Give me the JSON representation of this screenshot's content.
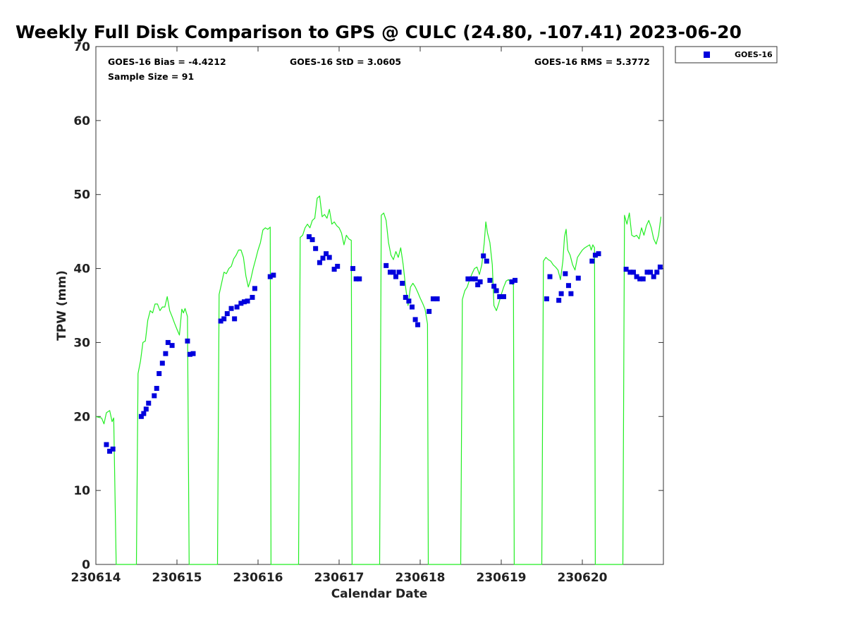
{
  "chart_data": {
    "type": "scatter",
    "title": "Weekly Full Disk Comparison to GPS @ CULC (24.80, -107.41) 2023-06-20",
    "xlabel": "Calendar Date",
    "ylabel": "TPW (mm)",
    "xlim": [
      0,
      7
    ],
    "ylim": [
      0,
      70
    ],
    "xticks": [
      {
        "value": 0,
        "label": "230614"
      },
      {
        "value": 1,
        "label": "230615"
      },
      {
        "value": 2,
        "label": "230616"
      },
      {
        "value": 3,
        "label": "230617"
      },
      {
        "value": 4,
        "label": "230618"
      },
      {
        "value": 5,
        "label": "230619"
      },
      {
        "value": 6,
        "label": "230620"
      }
    ],
    "yticks": [
      0,
      10,
      20,
      30,
      40,
      50,
      60,
      70
    ],
    "stats": {
      "bias": "GOES-16 Bias = -4.4212",
      "std": "GOES-16 StD = 3.0605",
      "rms": "GOES-16 RMS = 5.3772",
      "sample": "Sample Size = 91"
    },
    "legend": {
      "label": "GOES-16",
      "position": "top-right"
    },
    "colors": {
      "goes": "#0000dd",
      "gps": "#22ee22"
    },
    "gps_series": {
      "name": "GPS",
      "points": [
        [
          0.0,
          20.0
        ],
        [
          0.03,
          19.9
        ],
        [
          0.07,
          19.8
        ],
        [
          0.1,
          19.0
        ],
        [
          0.13,
          20.5
        ],
        [
          0.17,
          20.8
        ],
        [
          0.2,
          19.3
        ],
        [
          0.22,
          19.8
        ],
        [
          0.25,
          0
        ],
        [
          0.5,
          0
        ],
        [
          0.52,
          25.8
        ],
        [
          0.55,
          27.5
        ],
        [
          0.58,
          30.0
        ],
        [
          0.61,
          30.2
        ],
        [
          0.64,
          33.0
        ],
        [
          0.67,
          34.3
        ],
        [
          0.7,
          34.0
        ],
        [
          0.73,
          35.2
        ],
        [
          0.76,
          35.2
        ],
        [
          0.79,
          34.3
        ],
        [
          0.82,
          34.8
        ],
        [
          0.85,
          34.8
        ],
        [
          0.88,
          36.2
        ],
        [
          0.91,
          34.3
        ],
        [
          0.94,
          33.5
        ],
        [
          0.97,
          32.6
        ],
        [
          1.0,
          31.8
        ],
        [
          1.03,
          31.0
        ],
        [
          1.06,
          34.5
        ],
        [
          1.08,
          34.0
        ],
        [
          1.1,
          34.6
        ],
        [
          1.13,
          33.5
        ],
        [
          1.15,
          0
        ],
        [
          1.5,
          0
        ],
        [
          1.52,
          36.5
        ],
        [
          1.55,
          38.0
        ],
        [
          1.58,
          39.5
        ],
        [
          1.61,
          39.3
        ],
        [
          1.64,
          40.0
        ],
        [
          1.67,
          40.3
        ],
        [
          1.7,
          41.3
        ],
        [
          1.73,
          41.8
        ],
        [
          1.76,
          42.5
        ],
        [
          1.79,
          42.5
        ],
        [
          1.82,
          41.5
        ],
        [
          1.85,
          39.0
        ],
        [
          1.88,
          37.5
        ],
        [
          1.91,
          38.5
        ],
        [
          1.94,
          40.0
        ],
        [
          1.97,
          41.2
        ],
        [
          2.0,
          42.5
        ],
        [
          2.03,
          43.5
        ],
        [
          2.06,
          45.2
        ],
        [
          2.09,
          45.5
        ],
        [
          2.12,
          45.3
        ],
        [
          2.15,
          45.6
        ],
        [
          2.16,
          0
        ],
        [
          2.5,
          0
        ],
        [
          2.52,
          44.2
        ],
        [
          2.55,
          44.5
        ],
        [
          2.58,
          45.5
        ],
        [
          2.61,
          46.0
        ],
        [
          2.64,
          45.5
        ],
        [
          2.67,
          46.5
        ],
        [
          2.7,
          46.8
        ],
        [
          2.73,
          49.5
        ],
        [
          2.76,
          49.8
        ],
        [
          2.79,
          47.0
        ],
        [
          2.82,
          47.3
        ],
        [
          2.85,
          46.8
        ],
        [
          2.88,
          48.0
        ],
        [
          2.91,
          46.0
        ],
        [
          2.94,
          46.3
        ],
        [
          2.97,
          45.8
        ],
        [
          3.0,
          45.5
        ],
        [
          3.03,
          44.8
        ],
        [
          3.06,
          43.2
        ],
        [
          3.09,
          44.5
        ],
        [
          3.12,
          44.0
        ],
        [
          3.15,
          43.8
        ],
        [
          3.16,
          0
        ],
        [
          3.5,
          0
        ],
        [
          3.52,
          47.2
        ],
        [
          3.55,
          47.5
        ],
        [
          3.58,
          46.5
        ],
        [
          3.61,
          43.5
        ],
        [
          3.64,
          41.8
        ],
        [
          3.67,
          41.2
        ],
        [
          3.7,
          42.3
        ],
        [
          3.73,
          41.5
        ],
        [
          3.76,
          42.8
        ],
        [
          3.79,
          40.5
        ],
        [
          3.82,
          37.5
        ],
        [
          3.85,
          35.0
        ],
        [
          3.88,
          37.5
        ],
        [
          3.91,
          38.0
        ],
        [
          3.94,
          37.5
        ],
        [
          3.97,
          36.8
        ],
        [
          4.0,
          36.0
        ],
        [
          4.03,
          35.3
        ],
        [
          4.06,
          34.5
        ],
        [
          4.09,
          32.5
        ],
        [
          4.1,
          0
        ],
        [
          4.5,
          0
        ],
        [
          4.52,
          35.8
        ],
        [
          4.55,
          37.0
        ],
        [
          4.58,
          37.5
        ],
        [
          4.61,
          38.5
        ],
        [
          4.64,
          39.3
        ],
        [
          4.67,
          40.0
        ],
        [
          4.7,
          40.2
        ],
        [
          4.73,
          39.2
        ],
        [
          4.76,
          40.5
        ],
        [
          4.79,
          43.5
        ],
        [
          4.81,
          46.3
        ],
        [
          4.83,
          44.8
        ],
        [
          4.86,
          43.5
        ],
        [
          4.89,
          40.5
        ],
        [
          4.91,
          35.0
        ],
        [
          4.94,
          34.3
        ],
        [
          4.97,
          35.3
        ],
        [
          5.0,
          36.5
        ],
        [
          5.03,
          37.5
        ],
        [
          5.06,
          38.3
        ],
        [
          5.09,
          38.5
        ],
        [
          5.12,
          38.0
        ],
        [
          5.15,
          37.8
        ],
        [
          5.16,
          0
        ],
        [
          5.5,
          0
        ],
        [
          5.52,
          41.0
        ],
        [
          5.55,
          41.5
        ],
        [
          5.58,
          41.2
        ],
        [
          5.61,
          41.0
        ],
        [
          5.64,
          40.5
        ],
        [
          5.67,
          40.2
        ],
        [
          5.7,
          39.8
        ],
        [
          5.73,
          38.5
        ],
        [
          5.76,
          41.0
        ],
        [
          5.78,
          44.3
        ],
        [
          5.8,
          45.3
        ],
        [
          5.82,
          42.5
        ],
        [
          5.85,
          41.8
        ],
        [
          5.88,
          40.5
        ],
        [
          5.91,
          39.8
        ],
        [
          5.94,
          41.5
        ],
        [
          5.97,
          42.0
        ],
        [
          6.0,
          42.5
        ],
        [
          6.03,
          42.8
        ],
        [
          6.06,
          43.0
        ],
        [
          6.09,
          43.2
        ],
        [
          6.11,
          42.5
        ],
        [
          6.13,
          43.2
        ],
        [
          6.15,
          42.8
        ],
        [
          6.16,
          0
        ],
        [
          6.5,
          0
        ],
        [
          6.52,
          47.2
        ],
        [
          6.55,
          46.0
        ],
        [
          6.58,
          47.5
        ],
        [
          6.61,
          44.5
        ],
        [
          6.64,
          44.3
        ],
        [
          6.67,
          44.5
        ],
        [
          6.7,
          44.0
        ],
        [
          6.73,
          45.5
        ],
        [
          6.76,
          44.5
        ],
        [
          6.79,
          45.8
        ],
        [
          6.82,
          46.5
        ],
        [
          6.85,
          45.5
        ],
        [
          6.88,
          44.0
        ],
        [
          6.91,
          43.3
        ],
        [
          6.94,
          44.5
        ],
        [
          6.97,
          47.0
        ]
      ]
    },
    "goes_series": {
      "name": "GOES-16",
      "points": [
        [
          0.13,
          16.2
        ],
        [
          0.17,
          15.3
        ],
        [
          0.21,
          15.6
        ],
        [
          0.56,
          20.0
        ],
        [
          0.59,
          20.4
        ],
        [
          0.62,
          21.0
        ],
        [
          0.65,
          21.8
        ],
        [
          0.72,
          22.8
        ],
        [
          0.75,
          23.8
        ],
        [
          0.78,
          25.8
        ],
        [
          0.82,
          27.2
        ],
        [
          0.86,
          28.5
        ],
        [
          0.89,
          30.0
        ],
        [
          0.94,
          29.6
        ],
        [
          1.13,
          30.2
        ],
        [
          1.16,
          28.4
        ],
        [
          1.2,
          28.5
        ],
        [
          1.54,
          32.9
        ],
        [
          1.58,
          33.2
        ],
        [
          1.62,
          33.9
        ],
        [
          1.67,
          34.6
        ],
        [
          1.71,
          33.2
        ],
        [
          1.74,
          34.8
        ],
        [
          1.79,
          35.3
        ],
        [
          1.83,
          35.5
        ],
        [
          1.87,
          35.6
        ],
        [
          1.93,
          36.1
        ],
        [
          1.96,
          37.3
        ],
        [
          2.15,
          38.9
        ],
        [
          2.19,
          39.1
        ],
        [
          2.63,
          44.3
        ],
        [
          2.67,
          43.9
        ],
        [
          2.71,
          42.7
        ],
        [
          2.76,
          40.8
        ],
        [
          2.8,
          41.4
        ],
        [
          2.84,
          42.0
        ],
        [
          2.88,
          41.5
        ],
        [
          2.94,
          39.9
        ],
        [
          2.98,
          40.3
        ],
        [
          3.17,
          40.0
        ],
        [
          3.21,
          38.6
        ],
        [
          3.25,
          38.6
        ],
        [
          3.58,
          40.4
        ],
        [
          3.63,
          39.5
        ],
        [
          3.67,
          39.5
        ],
        [
          3.7,
          38.9
        ],
        [
          3.74,
          39.5
        ],
        [
          3.78,
          38.0
        ],
        [
          3.82,
          36.1
        ],
        [
          3.86,
          35.6
        ],
        [
          3.9,
          34.8
        ],
        [
          3.94,
          33.1
        ],
        [
          3.97,
          32.4
        ],
        [
          4.11,
          34.2
        ],
        [
          4.16,
          35.9
        ],
        [
          4.21,
          35.9
        ],
        [
          4.59,
          38.6
        ],
        [
          4.64,
          38.6
        ],
        [
          4.68,
          38.6
        ],
        [
          4.71,
          37.8
        ],
        [
          4.74,
          38.2
        ],
        [
          4.78,
          41.7
        ],
        [
          4.82,
          41.0
        ],
        [
          4.86,
          38.4
        ],
        [
          4.91,
          37.6
        ],
        [
          4.94,
          37.0
        ],
        [
          4.98,
          36.2
        ],
        [
          5.03,
          36.2
        ],
        [
          5.13,
          38.2
        ],
        [
          5.17,
          38.4
        ],
        [
          5.56,
          35.9
        ],
        [
          5.6,
          38.9
        ],
        [
          5.71,
          35.7
        ],
        [
          5.74,
          36.6
        ],
        [
          5.79,
          39.3
        ],
        [
          5.83,
          37.7
        ],
        [
          5.86,
          36.6
        ],
        [
          5.95,
          38.7
        ],
        [
          6.12,
          41.0
        ],
        [
          6.16,
          41.8
        ],
        [
          6.2,
          42.0
        ],
        [
          6.54,
          39.9
        ],
        [
          6.59,
          39.5
        ],
        [
          6.63,
          39.5
        ],
        [
          6.67,
          38.9
        ],
        [
          6.71,
          38.6
        ],
        [
          6.75,
          38.6
        ],
        [
          6.8,
          39.5
        ],
        [
          6.84,
          39.5
        ],
        [
          6.88,
          38.9
        ],
        [
          6.92,
          39.5
        ],
        [
          6.96,
          40.2
        ]
      ]
    }
  }
}
